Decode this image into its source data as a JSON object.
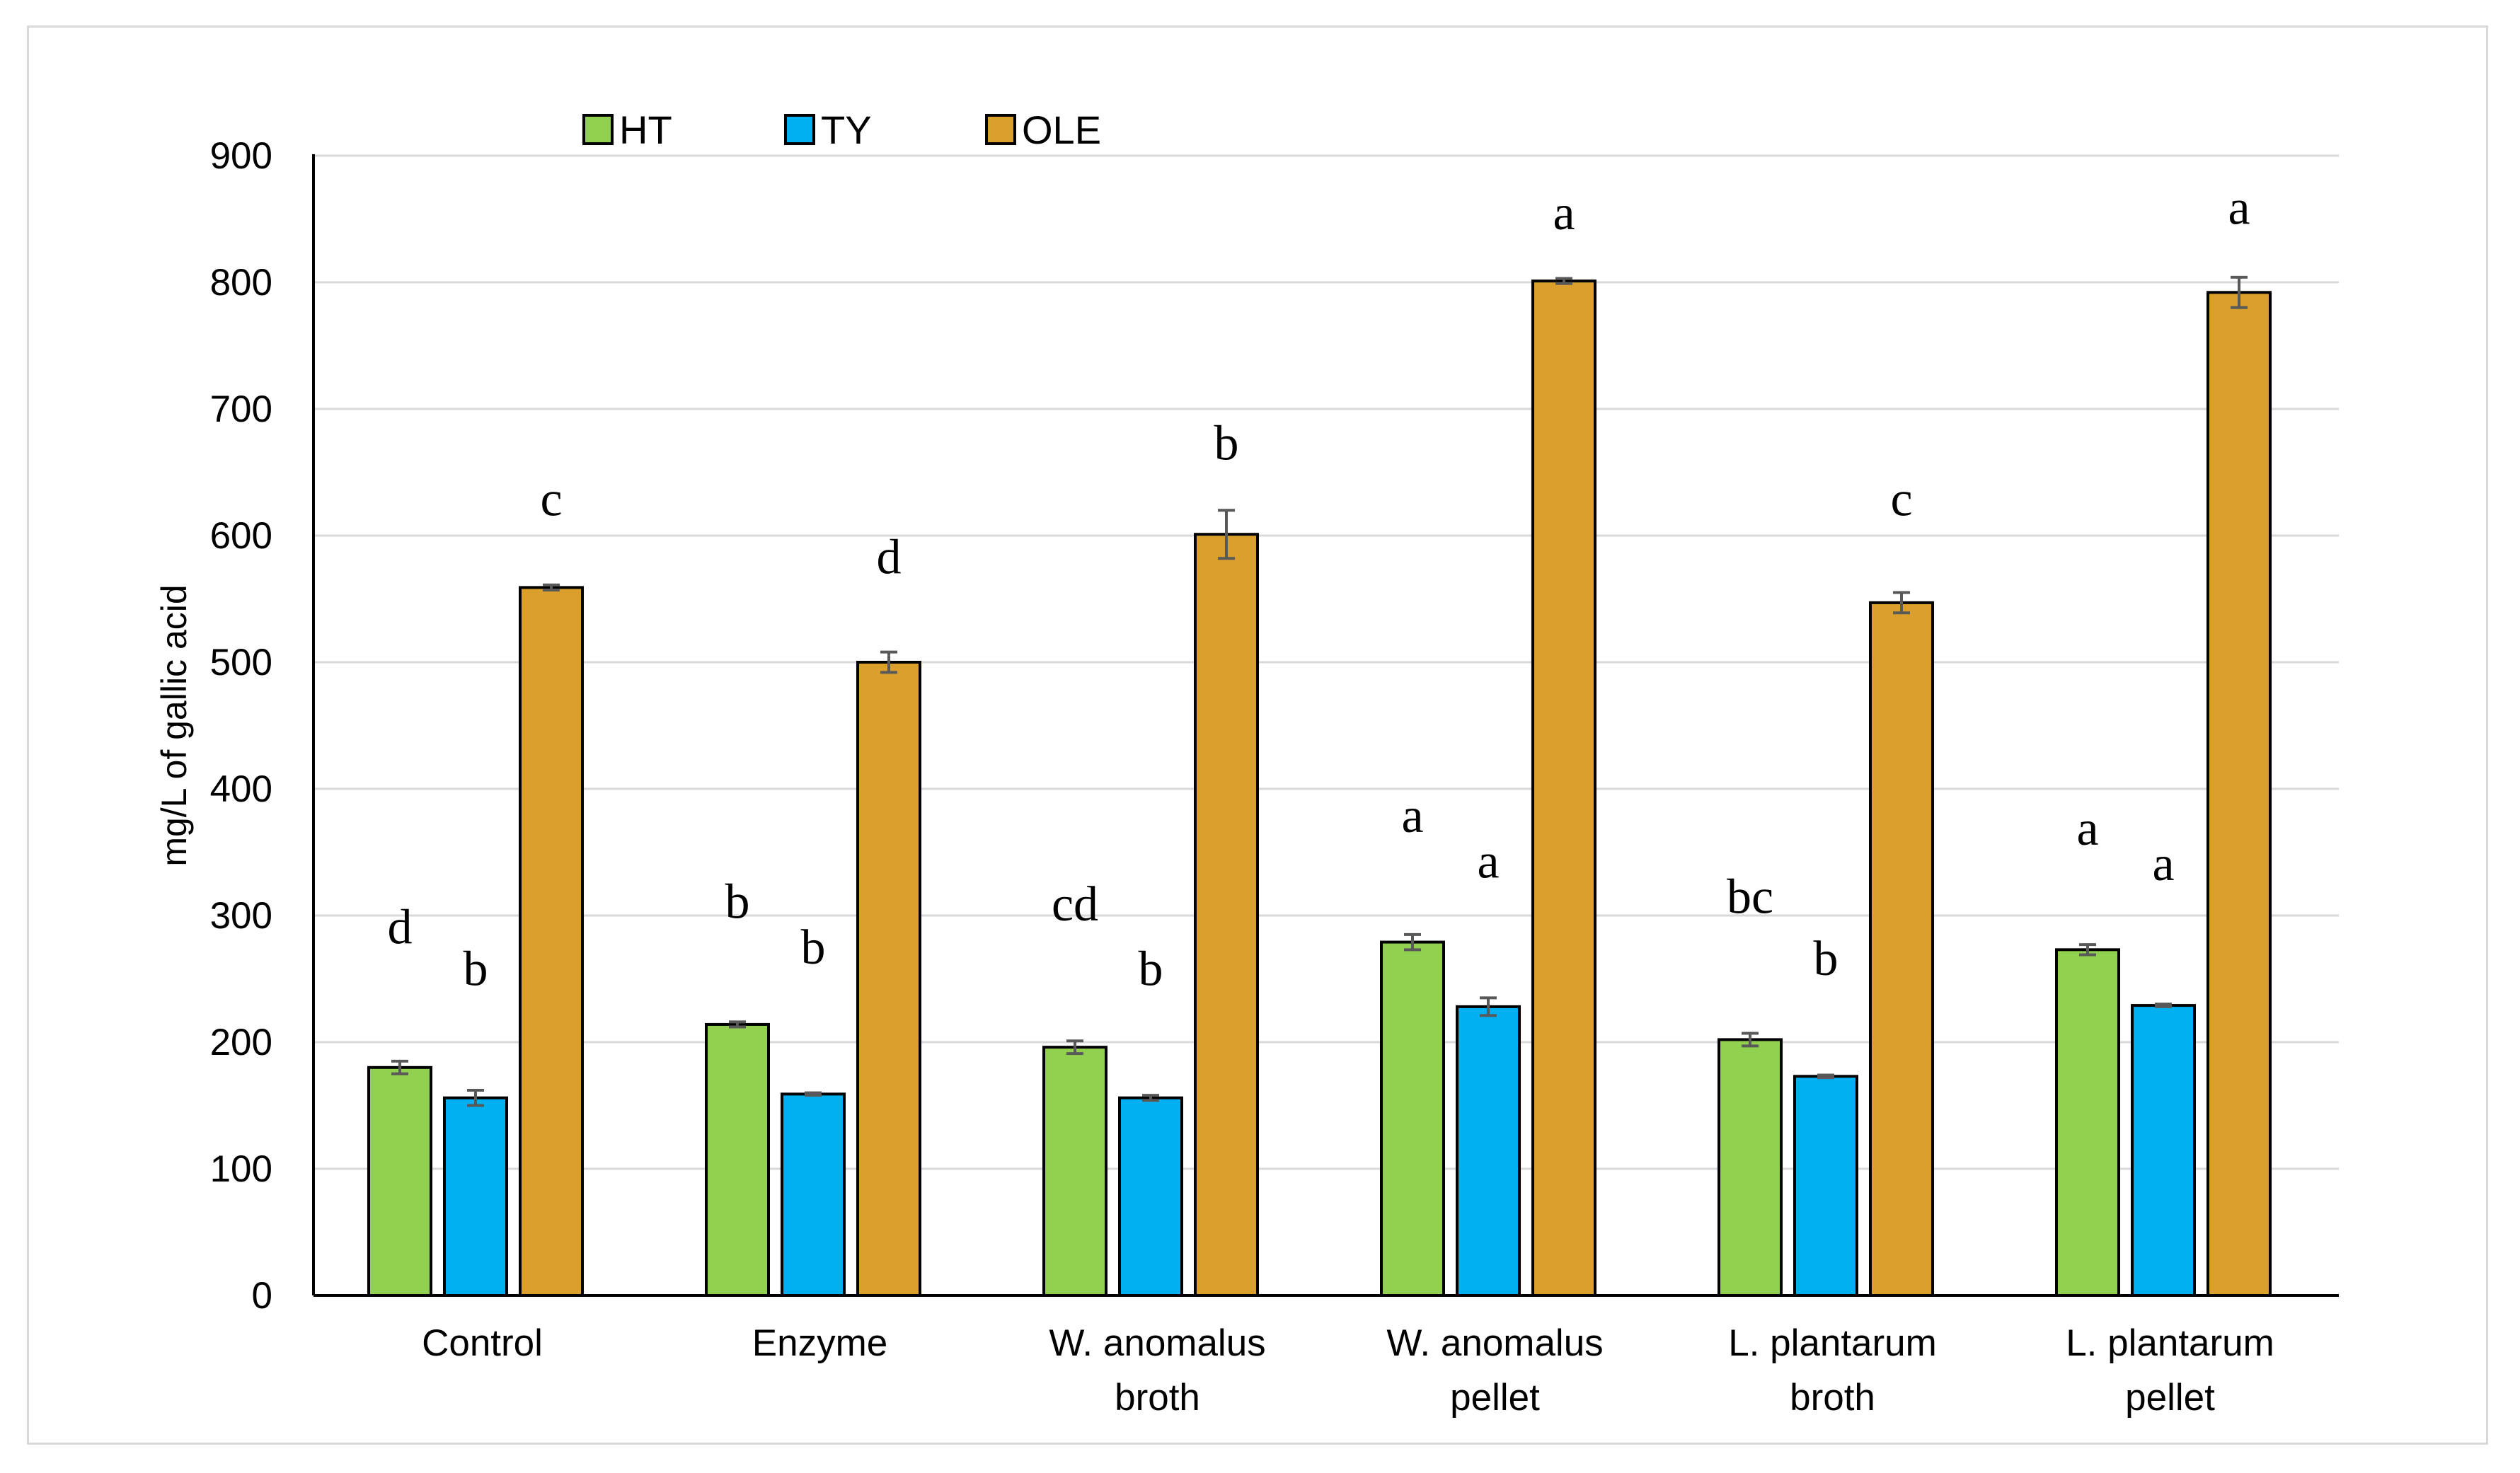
{
  "chart_data": {
    "type": "bar",
    "title": "",
    "xlabel": "",
    "ylabel": "mg/L of gallic acid",
    "ylim": [
      0,
      900
    ],
    "yticks": [
      0,
      100,
      200,
      300,
      400,
      500,
      600,
      700,
      800,
      900
    ],
    "grid": "horizontal",
    "legend_position": "top-left",
    "categories": [
      [
        "Control"
      ],
      [
        "Enzyme"
      ],
      [
        "W. anomalus",
        "broth"
      ],
      [
        "W. anomalus",
        "pellet"
      ],
      [
        "L. plantarum",
        "broth"
      ],
      [
        "L. plantarum",
        "pellet"
      ]
    ],
    "series": [
      {
        "name": "HT",
        "color": "#92d050",
        "values": [
          180,
          214,
          196,
          279,
          202,
          273
        ],
        "errors": [
          5,
          2,
          5,
          6,
          5,
          4
        ],
        "letters": [
          "d",
          "b",
          "cd",
          "a",
          "bc",
          "a"
        ],
        "letter_values": [
          278,
          298,
          296,
          366,
          302,
          356
        ]
      },
      {
        "name": "TY",
        "color": "#00b0f0",
        "values": [
          156,
          159,
          156,
          228,
          173,
          229
        ],
        "errors": [
          6,
          1,
          2,
          7,
          1,
          1
        ],
        "letters": [
          "b",
          "b",
          "b",
          "a",
          "b",
          "a"
        ],
        "letter_values": [
          245,
          262,
          245,
          330,
          253,
          328
        ]
      },
      {
        "name": "OLE",
        "color": "#daa02b",
        "values": [
          559,
          500,
          601,
          801,
          547,
          792
        ],
        "errors": [
          2,
          8,
          19,
          2,
          8,
          12
        ],
        "letters": [
          "c",
          "d",
          "b",
          "a",
          "c",
          "a"
        ],
        "letter_values": [
          616,
          570,
          660,
          842,
          616,
          846
        ]
      }
    ]
  }
}
